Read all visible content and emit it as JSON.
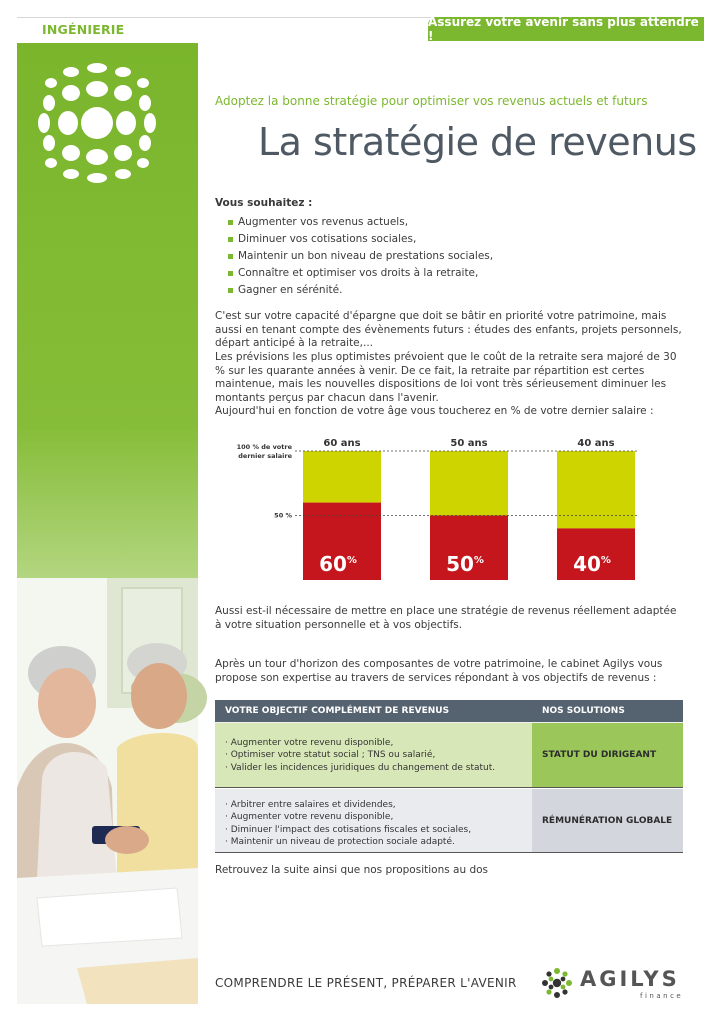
{
  "header": {
    "section": "INGÉNIERIE",
    "tagline": "Assurez votre avenir sans plus attendre !"
  },
  "intro": {
    "subtitle": "Adoptez la bonne stratégie pour optimiser vos revenus actuels et futurs",
    "title": "La stratégie de revenus"
  },
  "wishes": {
    "heading": "Vous souhaitez :",
    "items": [
      "Augmenter vos revenus actuels,",
      "Diminuer vos cotisations sociales,",
      "Maintenir un bon niveau de prestations sociales,",
      "Connaître et optimiser vos droits à la retraite,",
      "Gagner en sérénité."
    ]
  },
  "body": {
    "p1": "C'est sur votre capacité d'épargne que doit se bâtir en priorité votre patrimoine, mais aussi en tenant compte des évènements futurs : études des enfants, projets personnels, départ anticipé à la retraite,...",
    "p2": "Les prévisions les plus optimistes prévoient que le coût de la retraite sera majoré de 30 % sur les quarante années à venir. De ce fait, la retraite par répartition est certes maintenue, mais les nouvelles dispositions de loi vont très sérieusement diminuer les montants perçus par chacun dans l'avenir.",
    "p3": "Aujourd'hui en fonction de votre âge vous toucherez en % de votre dernier salaire :",
    "p4": "Aussi est-il nécessaire de mettre en place une stratégie de revenus réellement adaptée à votre situation personnelle et à vos objectifs.",
    "p5": "Après un tour d'horizon des composantes de votre patrimoine, le cabinet Agilys vous propose son expertise au travers de services répondant à vos objectifs de revenus :",
    "closing": "Retrouvez la suite ainsi que nos propositions au dos"
  },
  "chart_data": {
    "type": "bar",
    "categories": [
      "60 ans",
      "50 ans",
      "40 ans"
    ],
    "values": [
      60,
      50,
      40
    ],
    "value_suffix": "%",
    "ylim": [
      0,
      100
    ],
    "reference_lines": [
      {
        "value": 100,
        "label_line1": "100 % de votre",
        "label_line2": "dernier salaire"
      },
      {
        "value": 50,
        "label": "50 %"
      }
    ],
    "colors": {
      "value": "#c5161d",
      "remainder": "#cdd400"
    }
  },
  "table": {
    "headers": [
      "VOTRE OBJECTIF COMPLÉMENT DE REVENUS",
      "NOS SOLUTIONS"
    ],
    "rows": [
      {
        "objectives": [
          "· Augmenter votre revenu disponible,",
          "· Optimiser votre statut social ; TNS ou salarié,",
          "· Valider les incidences juridiques du changement de statut."
        ],
        "solution": "STATUT DU DIRIGEANT"
      },
      {
        "objectives": [
          "· Arbitrer entre salaires et dividendes,",
          "· Augmenter votre revenu disponible,",
          "· Diminuer l'impact des cotisations fiscales et sociales,",
          "· Maintenir un niveau de protection sociale adapté."
        ],
        "solution": "RÉMUNÉRATION GLOBALE"
      }
    ]
  },
  "footer": {
    "slogan": "COMPRENDRE LE PRÉSENT, PRÉPARER L'AVENIR",
    "brand": "AGILYS",
    "brand_sub": "finance"
  },
  "colors": {
    "accent_green": "#7cb82f",
    "chart_red": "#c5161d",
    "chart_yellow": "#cdd400",
    "table_header": "#556270"
  }
}
